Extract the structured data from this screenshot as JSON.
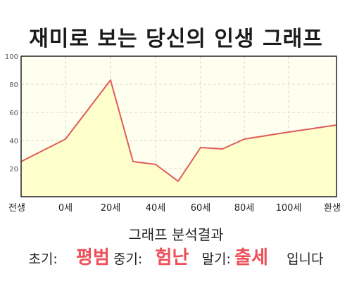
{
  "title": "재미로 보는 당신의 인생 그래프",
  "chart_data": {
    "type": "area",
    "x_categories": [
      "전생",
      "0세",
      "20세",
      "40세",
      "60세",
      "80세",
      "100세",
      "환생"
    ],
    "points": [
      {
        "x": "전생",
        "y": 25
      },
      {
        "x": "0세",
        "y": 41
      },
      {
        "x": "20세",
        "y": 83
      },
      {
        "x": "30세",
        "y": 25
      },
      {
        "x": "40세",
        "y": 23
      },
      {
        "x": "50세",
        "y": 11
      },
      {
        "x": "60세",
        "y": 35
      },
      {
        "x": "70세",
        "y": 34
      },
      {
        "x": "80세",
        "y": 41
      },
      {
        "x": "100세",
        "y": 46
      },
      {
        "x": "환생",
        "y": 51
      }
    ],
    "ylim": [
      0,
      100
    ],
    "y_ticks": [
      20,
      40,
      60,
      80,
      100
    ],
    "grid": true,
    "legend": "none",
    "colors": {
      "line": "#e05a5a",
      "fill": "#ffffcc",
      "plot_bg": "#fffff0",
      "grid": "#d8d8c8",
      "axis": "#222222"
    }
  },
  "summary": {
    "heading": "그래프 분석결과",
    "early_label": "초기:",
    "early_value": "평범",
    "mid_label": "중기:",
    "mid_value": "험난",
    "late_label": "말기:",
    "late_value": "출세",
    "ending": "입니다"
  }
}
